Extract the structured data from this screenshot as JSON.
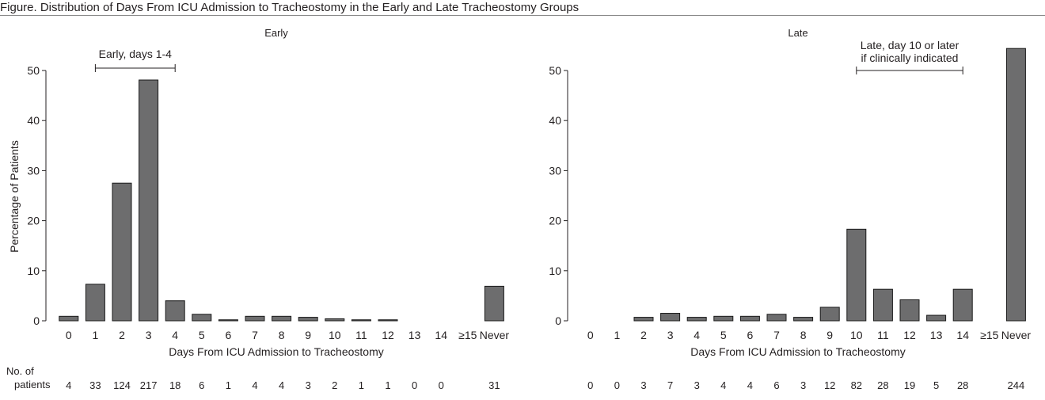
{
  "figure": {
    "title": "Figure. Distribution of Days From ICU Admission to Tracheostomy in the Early and Late Tracheostomy Groups",
    "count_label_line1": "No. of",
    "count_label_line2": "patients"
  },
  "style": {
    "bar_fill": "#6d6d6e",
    "bar_stroke": "#1a1a1a",
    "axis_color": "#231f20"
  },
  "chart_data": [
    {
      "type": "bar",
      "title": "Early",
      "xlabel": "Days From ICU Admission to Tracheostomy",
      "ylabel": "Percentage of Patients",
      "ylim": [
        0,
        50
      ],
      "yticks": [
        0,
        10,
        20,
        30,
        40,
        50
      ],
      "grid": false,
      "categories": [
        "0",
        "1",
        "2",
        "3",
        "4",
        "5",
        "6",
        "7",
        "8",
        "9",
        "10",
        "11",
        "12",
        "13",
        "14",
        "≥15",
        "Never"
      ],
      "values": [
        0.9,
        7.3,
        27.5,
        48.1,
        4.0,
        1.3,
        0.2,
        0.9,
        0.9,
        0.7,
        0.4,
        0.2,
        0.2,
        0,
        0,
        0,
        6.9
      ],
      "counts": [
        "4",
        "33",
        "124",
        "217",
        "18",
        "6",
        "1",
        "4",
        "4",
        "3",
        "2",
        "1",
        "1",
        "0",
        "0",
        "",
        "31"
      ],
      "annotation": {
        "text_lines": [
          "Early, days 1-4"
        ],
        "from": "1",
        "to": "4"
      }
    },
    {
      "type": "bar",
      "title": "Late",
      "xlabel": "Days From ICU Admission to Tracheostomy",
      "ylabel": "",
      "ylim": [
        0,
        50
      ],
      "yticks": [
        0,
        10,
        20,
        30,
        40,
        50
      ],
      "grid": false,
      "categories": [
        "0",
        "1",
        "2",
        "3",
        "4",
        "5",
        "6",
        "7",
        "8",
        "9",
        "10",
        "11",
        "12",
        "13",
        "14",
        "≥15",
        "Never"
      ],
      "values": [
        0,
        0,
        0.7,
        1.5,
        0.7,
        0.9,
        0.9,
        1.3,
        0.7,
        2.7,
        18.3,
        6.3,
        4.2,
        1.1,
        6.3,
        0,
        54.4
      ],
      "counts": [
        "0",
        "0",
        "3",
        "7",
        "3",
        "4",
        "4",
        "6",
        "3",
        "12",
        "82",
        "28",
        "19",
        "5",
        "28",
        "",
        "244"
      ],
      "annotation": {
        "text_lines": [
          "Late, day 10 or later",
          "if clinically indicated"
        ],
        "from": "10",
        "to": "14"
      }
    }
  ]
}
